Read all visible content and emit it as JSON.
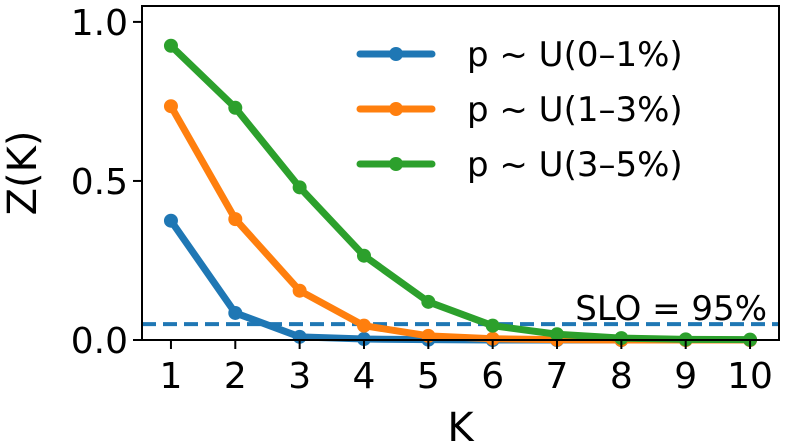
{
  "chart_data": {
    "type": "line",
    "title": "",
    "xlabel": "K",
    "ylabel": "Z(K)",
    "x": [
      1,
      2,
      3,
      4,
      5,
      6,
      7,
      8,
      9,
      10
    ],
    "xlim": [
      0.55,
      10.45
    ],
    "ylim": [
      0,
      1.05
    ],
    "xticks": [
      "1",
      "2",
      "3",
      "4",
      "5",
      "6",
      "7",
      "8",
      "9",
      "10"
    ],
    "yticks": [
      {
        "value": 0.0,
        "label": "0.0"
      },
      {
        "value": 0.5,
        "label": "0.5"
      },
      {
        "value": 1.0,
        "label": "1.0"
      }
    ],
    "grid": false,
    "legend_position": "top-right",
    "series": [
      {
        "name": "p ~ U(0–1%)",
        "color": "#1f77b4",
        "values": [
          0.375,
          0.085,
          0.01,
          0.003,
          0.001,
          0.0,
          0.0,
          0.0,
          0.0,
          0.0
        ]
      },
      {
        "name": "p ~ U(1–3%)",
        "color": "#ff7f0e",
        "values": [
          0.735,
          0.38,
          0.155,
          0.045,
          0.013,
          0.004,
          0.001,
          0.0,
          0.0,
          0.0
        ]
      },
      {
        "name": "p ~ U(3–5%)",
        "color": "#2ca02c",
        "values": [
          0.925,
          0.73,
          0.48,
          0.265,
          0.12,
          0.045,
          0.018,
          0.006,
          0.002,
          0.001
        ]
      }
    ],
    "reference_line": {
      "y": 0.05,
      "label": "SLO = 95%",
      "color": "#1f77b4",
      "style": "dashed"
    }
  }
}
